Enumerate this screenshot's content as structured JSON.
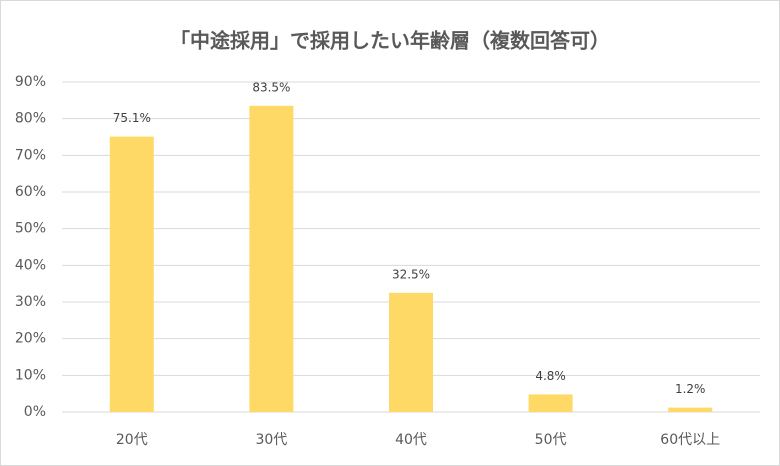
{
  "chart_data": {
    "type": "bar",
    "title": "「中途採用」で採用したい年齢層（複数回答可）",
    "categories": [
      "20代",
      "30代",
      "40代",
      "50代",
      "60代以上"
    ],
    "values": [
      75.1,
      83.5,
      32.5,
      4.8,
      1.2
    ],
    "value_labels": [
      "75.1%",
      "83.5%",
      "32.5%",
      "4.8%",
      "1.2%"
    ],
    "color": "#ffd966",
    "ylim": [
      0,
      90
    ],
    "yticks": [
      {
        "value": 0,
        "label": "0%"
      },
      {
        "value": 10,
        "label": "10%"
      },
      {
        "value": 20,
        "label": "20%"
      },
      {
        "value": 30,
        "label": "30%"
      },
      {
        "value": 40,
        "label": "40%"
      },
      {
        "value": 50,
        "label": "50%"
      },
      {
        "value": 60,
        "label": "60%"
      },
      {
        "value": 70,
        "label": "70%"
      },
      {
        "value": 80,
        "label": "80%"
      },
      {
        "value": 90,
        "label": "90%"
      }
    ],
    "grid": true
  }
}
